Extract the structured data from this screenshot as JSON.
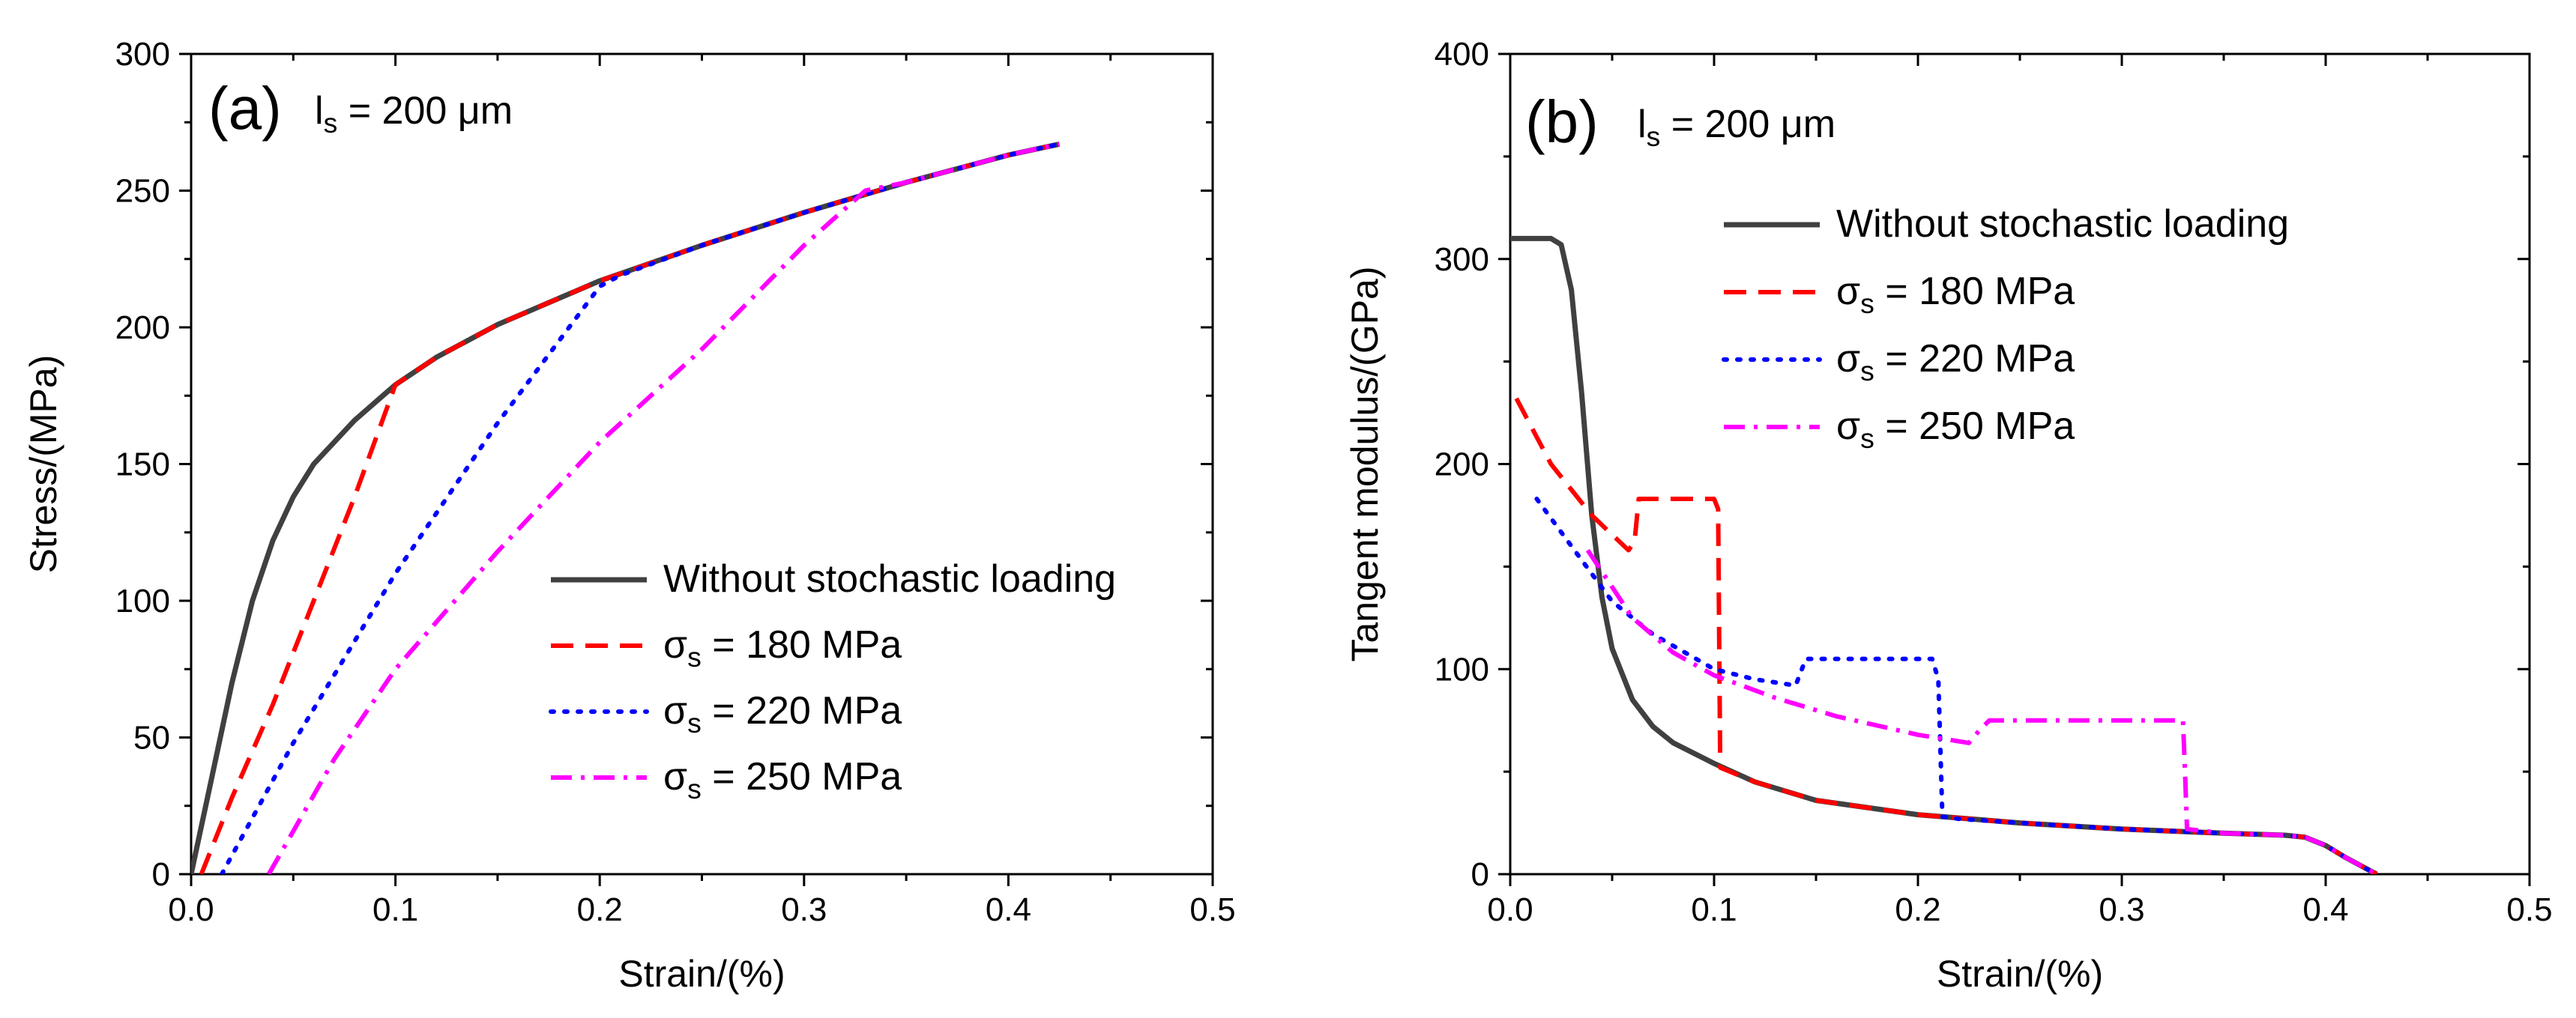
{
  "chart_data": [
    {
      "panel": "(a)",
      "type": "line",
      "annotation": {
        "main": "l",
        "sub": "s",
        "rest": " = 200 μm"
      },
      "xlabel": "Strain/(%)",
      "ylabel": "Stress/(MPa)",
      "xlim": [
        0,
        0.5
      ],
      "ylim": [
        0,
        300
      ],
      "xticks": [
        "0.0",
        "0.1",
        "0.2",
        "0.3",
        "0.4",
        "0.5"
      ],
      "yticks": [
        "0",
        "50",
        "100",
        "150",
        "200",
        "250",
        "300"
      ],
      "legend_position": "bottom-right",
      "series": [
        {
          "name": "Without stochastic loading",
          "color": "#404040",
          "dash": "solid",
          "x": [
            0,
            0.01,
            0.02,
            0.03,
            0.04,
            0.05,
            0.06,
            0.08,
            0.1,
            0.12,
            0.15,
            0.2,
            0.25,
            0.3,
            0.35,
            0.4,
            0.425
          ],
          "y": [
            0,
            35,
            70,
            100,
            122,
            138,
            150,
            166,
            179,
            189,
            201,
            217,
            230,
            242,
            253,
            263,
            267
          ]
        },
        {
          "name_main": "σ",
          "name_sub": "s",
          "name_rest": " = 180 MPa",
          "color": "#ff0000",
          "dash": "dash",
          "x": [
            0.005,
            0.02,
            0.04,
            0.06,
            0.08,
            0.1,
            0.12,
            0.15,
            0.2,
            0.25,
            0.3,
            0.35,
            0.4,
            0.425
          ],
          "y": [
            0,
            28,
            62,
            100,
            138,
            179,
            189,
            201,
            217,
            230,
            242,
            253,
            263,
            267
          ]
        },
        {
          "name_main": "σ",
          "name_sub": "s",
          "name_rest": " = 220 MPa",
          "color": "#0000ff",
          "dash": "dot",
          "x": [
            0.015,
            0.05,
            0.1,
            0.15,
            0.2,
            0.21,
            0.25,
            0.3,
            0.35,
            0.4,
            0.425
          ],
          "y": [
            0,
            48,
            110,
            165,
            215,
            219,
            230,
            242,
            253,
            263,
            267
          ]
        },
        {
          "name_main": "σ",
          "name_sub": "s",
          "name_rest": " = 250 MPa",
          "color": "#ff00ff",
          "dash": "dashdot",
          "x": [
            0.038,
            0.07,
            0.1,
            0.15,
            0.2,
            0.25,
            0.3,
            0.33,
            0.35,
            0.4,
            0.425
          ],
          "y": [
            0,
            42,
            75,
            118,
            158,
            192,
            230,
            250,
            253,
            263,
            267
          ]
        }
      ]
    },
    {
      "panel": "(b)",
      "type": "line",
      "annotation": {
        "main": "l",
        "sub": "s",
        "rest": " = 200 μm"
      },
      "xlabel": "Strain/(%)",
      "ylabel": "Tangent modulus/(GPa)",
      "xlim": [
        0,
        0.5
      ],
      "ylim": [
        0,
        400
      ],
      "xticks": [
        "0.0",
        "0.1",
        "0.2",
        "0.3",
        "0.4",
        "0.5"
      ],
      "yticks": [
        "0",
        "100",
        "200",
        "300",
        "400"
      ],
      "legend_position": "top-right",
      "series": [
        {
          "name": "Without stochastic loading",
          "color": "#404040",
          "dash": "solid",
          "x": [
            0,
            0.02,
            0.025,
            0.03,
            0.035,
            0.04,
            0.045,
            0.05,
            0.06,
            0.07,
            0.08,
            0.1,
            0.12,
            0.15,
            0.2,
            0.25,
            0.3,
            0.35,
            0.38,
            0.39,
            0.4,
            0.41,
            0.425
          ],
          "y": [
            310,
            310,
            307,
            285,
            235,
            175,
            135,
            110,
            85,
            72,
            64,
            54,
            45,
            36,
            29,
            25,
            22,
            20,
            19,
            18,
            14,
            8,
            0
          ]
        },
        {
          "name_main": "σ",
          "name_sub": "s",
          "name_rest": " = 180 MPa",
          "color": "#ff0000",
          "dash": "dash",
          "x": [
            0.003,
            0.02,
            0.04,
            0.058,
            0.061,
            0.063,
            0.1,
            0.102,
            0.103,
            0.12,
            0.15,
            0.2,
            0.25,
            0.3,
            0.35,
            0.38,
            0.39,
            0.4,
            0.41,
            0.425
          ],
          "y": [
            232,
            200,
            175,
            158,
            162,
            183,
            183,
            178,
            52,
            45,
            36,
            29,
            25,
            22,
            20,
            19,
            18,
            14,
            8,
            0
          ]
        },
        {
          "name_main": "σ",
          "name_sub": "s",
          "name_rest": " = 220 MPa",
          "color": "#0000ff",
          "dash": "dot",
          "x": [
            0.013,
            0.03,
            0.05,
            0.07,
            0.1,
            0.12,
            0.14,
            0.145,
            0.207,
            0.21,
            0.212,
            0.22,
            0.25,
            0.3,
            0.35,
            0.38,
            0.39,
            0.4,
            0.41,
            0.425
          ],
          "y": [
            183,
            160,
            133,
            117,
            100,
            95,
            92,
            105,
            105,
            95,
            28,
            27,
            25,
            22,
            20,
            19,
            18,
            14,
            8,
            0
          ]
        },
        {
          "name_main": "σ",
          "name_sub": "s",
          "name_rest": " = 250 MPa",
          "color": "#ff00ff",
          "dash": "dashdot",
          "x": [
            0.038,
            0.06,
            0.08,
            0.1,
            0.13,
            0.16,
            0.2,
            0.225,
            0.23,
            0.235,
            0.33,
            0.331,
            0.332,
            0.35,
            0.38,
            0.39,
            0.4,
            0.41,
            0.425
          ],
          "y": [
            158,
            125,
            108,
            97,
            86,
            77,
            68,
            64,
            70,
            75,
            75,
            50,
            22,
            20,
            19,
            18,
            14,
            8,
            0
          ]
        }
      ]
    }
  ]
}
